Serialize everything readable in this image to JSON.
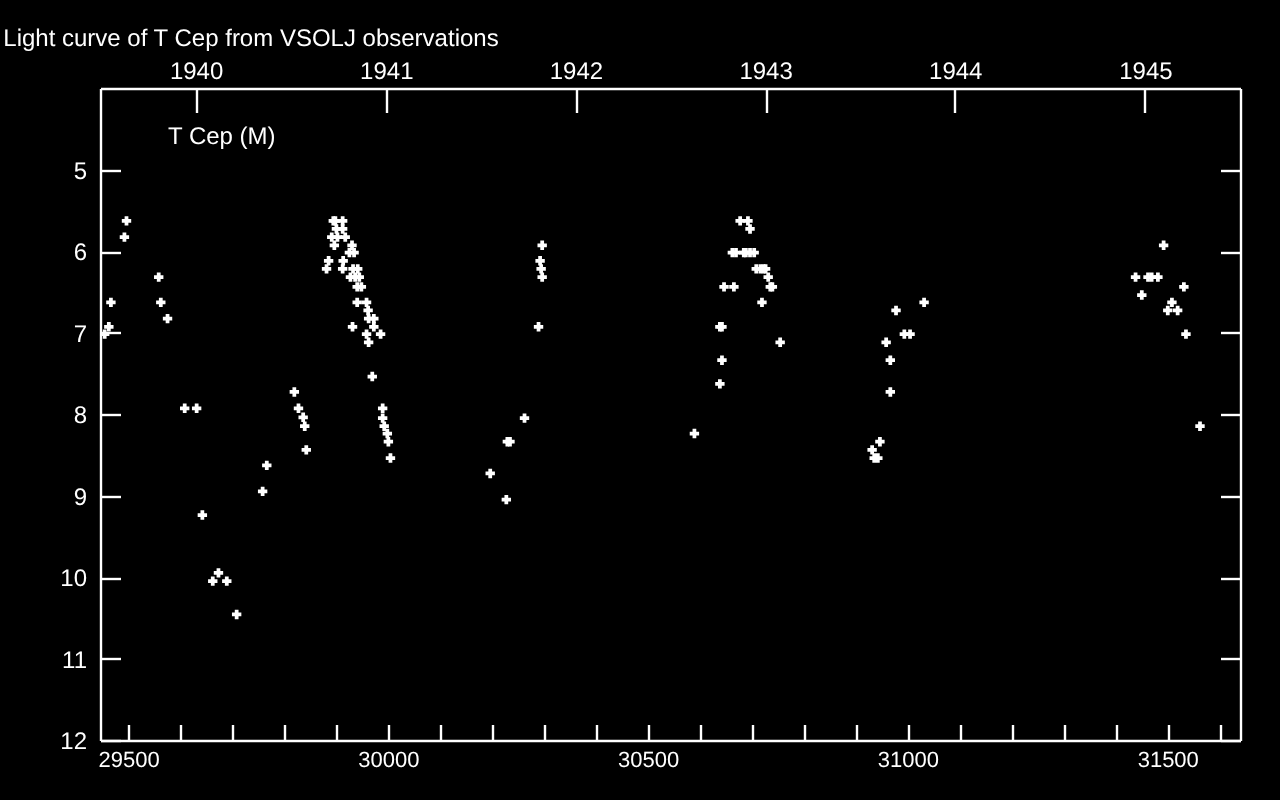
{
  "chart_data": {
    "type": "scatter",
    "title": "Light curve of T Cep from VSOLJ observations",
    "marker": "cross",
    "legend": "top left",
    "xlim": [
      29446,
      31640
    ],
    "ylim": [
      12,
      4
    ],
    "xticks": [
      29500,
      {
        "value": 29600,
        "label": null
      },
      {
        "value": 29700,
        "label": null
      },
      {
        "value": 29800,
        "label": null
      },
      {
        "value": 29900,
        "label": null
      },
      30000,
      {
        "value": 30100,
        "label": null
      },
      {
        "value": 30200,
        "label": null
      },
      {
        "value": 30300,
        "label": null
      },
      {
        "value": 30400,
        "label": null
      },
      30500,
      {
        "value": 30600,
        "label": null
      },
      {
        "value": 30700,
        "label": null
      },
      {
        "value": 30800,
        "label": null
      },
      {
        "value": 30900,
        "label": null
      },
      31000,
      {
        "value": 31100,
        "label": null
      },
      {
        "value": 31200,
        "label": null
      },
      {
        "value": 31300,
        "label": null
      },
      {
        "value": 31400,
        "label": null
      },
      31500,
      {
        "value": 31600,
        "label": null
      }
    ],
    "yticks": [
      5,
      6,
      7,
      8,
      9,
      10,
      11,
      12
    ],
    "x2lim": [
      "1939-07-01",
      "1945-07-03"
    ],
    "x2ticks": [
      "1940",
      "1941",
      "1942",
      "1943",
      "1944",
      "1945"
    ],
    "series": [
      {
        "name": "T Cep (M)",
        "color": "#ffffff",
        "x": [
          29497,
          29493,
          29467,
          29463,
          29455,
          29559,
          29563,
          29576,
          29609,
          29632,
          29643,
          29663,
          29674,
          29690,
          29709,
          29759,
          29767,
          29820,
          29828,
          29837,
          29840,
          29843,
          29895,
          29899,
          29913,
          29901,
          29913,
          29892,
          29903,
          29918,
          29897,
          29931,
          29926,
          29935,
          29886,
          29914,
          29882,
          29913,
          29933,
          29942,
          29928,
          29937,
          29945,
          29941,
          29949,
          29941,
          29959,
          29962,
          29963,
          29973,
          29932,
          29973,
          29959,
          29986,
          29963,
          29970,
          29990,
          29990,
          29993,
          29999,
          30001,
          30005,
          30297,
          30293,
          30295,
          30297,
          30290,
          30263,
          30230,
          30235,
          30197,
          30228,
          30590,
          30678,
          30693,
          30697,
          30663,
          30670,
          30685,
          30689,
          30697,
          30705,
          30709,
          30717,
          30723,
          30727,
          30732,
          30647,
          30666,
          30736,
          30740,
          30720,
          30639,
          30643,
          30755,
          30643,
          30639,
          31032,
          30978,
          30994,
          31005,
          30959,
          30967,
          30967,
          30947,
          30932,
          30936,
          30943,
          31493,
          31439,
          31463,
          31470,
          31482,
          31532,
          31451,
          31509,
          31501,
          31520,
          31536,
          31563
        ],
        "values": [
          5.63,
          5.83,
          6.63,
          6.93,
          7.02,
          6.32,
          6.63,
          6.83,
          7.93,
          7.93,
          9.24,
          10.05,
          9.95,
          10.05,
          10.46,
          8.95,
          8.63,
          7.73,
          7.93,
          8.04,
          8.15,
          8.44,
          5.63,
          5.63,
          5.63,
          5.73,
          5.73,
          5.83,
          5.83,
          5.83,
          5.93,
          5.93,
          6.02,
          6.02,
          6.12,
          6.12,
          6.22,
          6.22,
          6.22,
          6.22,
          6.32,
          6.32,
          6.32,
          6.44,
          6.44,
          6.63,
          6.63,
          6.73,
          6.83,
          6.83,
          6.93,
          6.93,
          7.02,
          7.02,
          7.12,
          7.54,
          7.93,
          8.05,
          8.15,
          8.24,
          8.34,
          8.54,
          5.93,
          6.12,
          6.22,
          6.32,
          6.93,
          8.05,
          8.34,
          8.34,
          8.73,
          9.05,
          8.24,
          5.63,
          5.63,
          5.73,
          6.02,
          6.02,
          6.02,
          6.02,
          6.02,
          6.02,
          6.22,
          6.22,
          6.22,
          6.22,
          6.32,
          6.44,
          6.44,
          6.44,
          6.44,
          6.63,
          6.93,
          6.93,
          7.12,
          7.34,
          7.63,
          6.63,
          6.73,
          7.02,
          7.02,
          7.12,
          7.34,
          7.73,
          8.34,
          8.44,
          8.54,
          8.54,
          5.93,
          6.32,
          6.32,
          6.32,
          6.32,
          6.44,
          6.54,
          6.63,
          6.73,
          6.73,
          7.02,
          8.15
        ]
      }
    ]
  }
}
